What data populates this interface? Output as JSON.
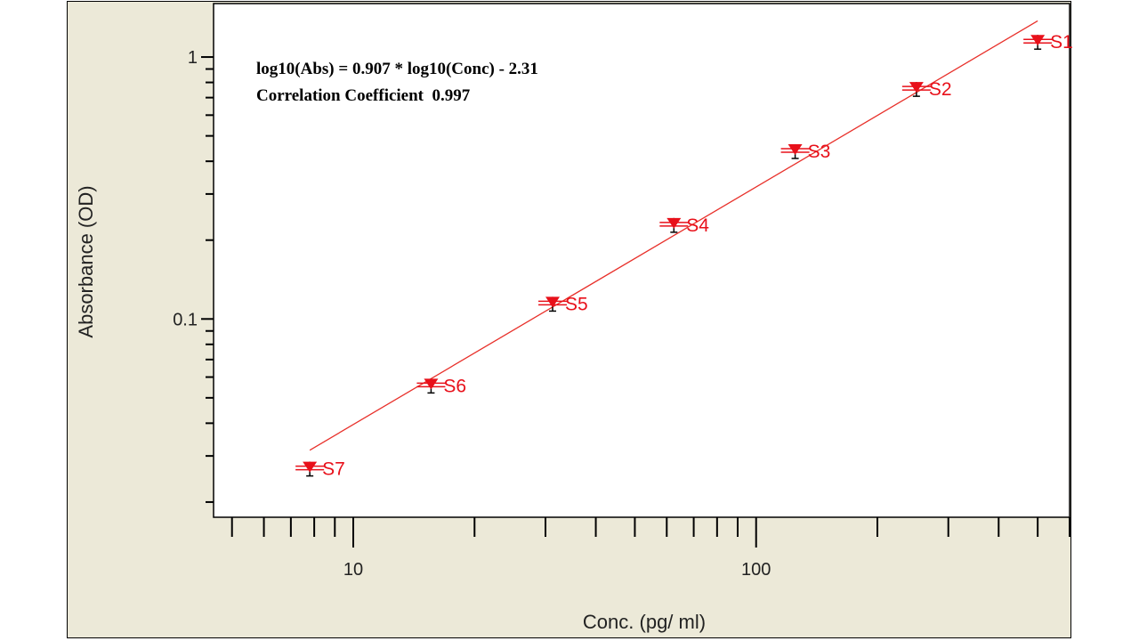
{
  "chart_data": {
    "type": "scatter",
    "equation": "log10(Abs) = 0.907 * log10(Conc) - 2.31",
    "correlation": "Correlation Coefficient  0.997",
    "xlabel": "Conc. (pg/ ml)",
    "ylabel": "Absorbance (OD)",
    "x_scale": "log",
    "y_scale": "log",
    "xlim": [
      4.5,
      600
    ],
    "ylim": [
      0.0175,
      1.6
    ],
    "x_ticks": [
      {
        "value": 10,
        "label": "10"
      },
      {
        "value": 100,
        "label": "100"
      }
    ],
    "y_ticks": [
      {
        "value": 0.1,
        "label": "0.1"
      },
      {
        "value": 1,
        "label": "1"
      }
    ],
    "fit": {
      "slope": 0.907,
      "intercept": -2.31,
      "x_range": [
        7.8,
        500
      ]
    },
    "series": [
      {
        "points": [
          {
            "label": "S1",
            "x": 500,
            "y": 1.15
          },
          {
            "label": "S2",
            "x": 250,
            "y": 0.76
          },
          {
            "label": "S3",
            "x": 125,
            "y": 0.44
          },
          {
            "label": "S4",
            "x": 62.5,
            "y": 0.23
          },
          {
            "label": "S5",
            "x": 31.25,
            "y": 0.115
          },
          {
            "label": "S6",
            "x": 15.6,
            "y": 0.056
          },
          {
            "label": "S7",
            "x": 7.8,
            "y": 0.027
          }
        ]
      }
    ],
    "colors": {
      "fit_line": "#e8302a",
      "marker": "#e8101a",
      "point_label": "#e8101a",
      "frame": "#ece9d8",
      "plot": "#ffffff"
    }
  }
}
